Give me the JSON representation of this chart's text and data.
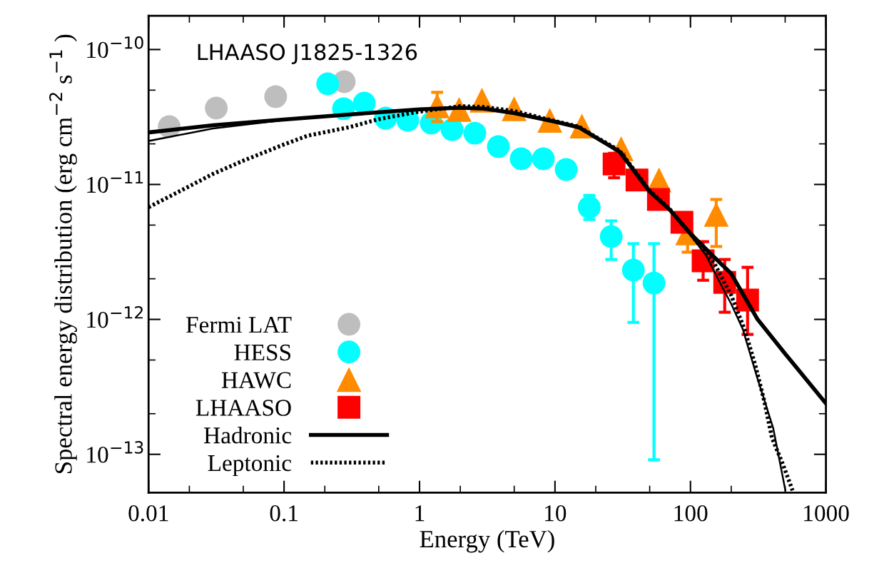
{
  "chart_data": {
    "type": "scatter",
    "title": "LHAASO J1825-1326",
    "xlabel": "Energy (TeV)",
    "ylabel": "Spectral energy distribution (erg cm$^{−2}$ s$^{−1}$ )",
    "log": "xy",
    "grid": false,
    "legend": "bottom left",
    "xlim": [
      0.01,
      1000
    ],
    "xticks": [
      0.01,
      0.1,
      1,
      10,
      100,
      1000
    ],
    "ylim": [
      5.2e-14,
      1.78e-10
    ],
    "yticks": [
      {
        "value": 1e-13,
        "label": "10$^{−13}$"
      },
      {
        "value": 1e-12,
        "label": "10$^{−12}$"
      },
      {
        "value": 1e-11,
        "label": "10$^{−11}$"
      },
      {
        "value": 1e-10,
        "label": "10$^{−10}$"
      }
    ],
    "series": [
      {
        "name": "Fermi LAT",
        "marker": "circle",
        "color": "#bebebe",
        "x": [
          0.0142,
          0.0316,
          0.0867,
          0.278
        ],
        "values": [
          2.68e-11,
          3.68e-11,
          4.48e-11,
          5.78e-11
        ]
      },
      {
        "name": "HESS",
        "marker": "circle",
        "color": "#00ffff",
        "x": [
          0.21,
          0.275,
          0.391,
          0.562,
          0.818,
          1.22,
          1.74,
          2.56,
          3.82,
          5.63,
          8.2,
          12.1,
          17.9,
          26.0,
          37.9,
          53.8
        ],
        "values": [
          5.57e-11,
          3.64e-11,
          4.01e-11,
          3.1e-11,
          2.99e-11,
          2.85e-11,
          2.55e-11,
          2.4e-11,
          1.91e-11,
          1.55e-11,
          1.55e-11,
          1.29e-11,
          6.77e-12,
          4.11e-12,
          2.32e-12,
          1.86e-12
        ],
        "errors": [
          null,
          null,
          null,
          null,
          null,
          null,
          null,
          null,
          null,
          null,
          null,
          null,
          [
            5.5e-12,
            8.3e-12
          ],
          [
            2.78e-12,
            5.37e-12
          ],
          [
            9.5e-13,
            3.64e-12
          ],
          [
            9.1e-14,
            3.64e-12
          ]
        ]
      },
      {
        "name": "HAWC",
        "marker": "triangle",
        "color": "#ff8c00",
        "x": [
          1.35,
          1.96,
          2.89,
          4.99,
          9.16,
          15.8,
          30.8,
          58.6,
          95.3,
          155
        ],
        "values": [
          3.82e-11,
          3.6e-11,
          4.21e-11,
          3.64e-11,
          2.99e-11,
          2.71e-11,
          1.84e-11,
          1.08e-11,
          4.37e-12,
          6e-12
        ],
        "errors": [
          [
            2.92e-11,
            4.82e-11
          ],
          null,
          null,
          null,
          null,
          null,
          null,
          null,
          [
            3.15e-12,
            4.37e-12
          ],
          [
            3.47e-12,
            7.74e-12
          ]
        ]
      },
      {
        "name": "LHAASO",
        "marker": "square",
        "color": "#ff0000",
        "x": [
          27.3,
          40.3,
          58.0,
          86.5,
          124,
          179,
          264
        ],
        "values": [
          1.42e-11,
          1.08e-11,
          7.75e-12,
          5.24e-12,
          2.72e-12,
          1.88e-12,
          1.39e-12
        ],
        "errors": [
          [
            1.12e-11,
            1.7e-11
          ],
          null,
          null,
          null,
          [
            1.95e-12,
            3.77e-12
          ],
          [
            1.13e-12,
            2.78e-12
          ],
          [
            7.74e-13,
            2.43e-12
          ]
        ]
      },
      {
        "name": "Hadronic",
        "type": "line",
        "line_style": "solid",
        "color": "#000000",
        "x": [
          0.01,
          0.03,
          0.1,
          0.3,
          1,
          2,
          3,
          5,
          10,
          15,
          20,
          30,
          50,
          70,
          100,
          150,
          200,
          313,
          500,
          1000
        ],
        "values": [
          2.43e-11,
          2.75e-11,
          3.03e-11,
          3.3e-11,
          3.6e-11,
          3.7e-11,
          3.65e-11,
          3.38e-11,
          2.92e-11,
          2.65e-11,
          2.23e-11,
          1.75e-11,
          8.85e-12,
          6.53e-12,
          4.32e-12,
          2.89e-12,
          2.18e-12,
          1e-12,
          5.57e-13,
          2.38e-13
        ]
      },
      {
        "type": "line",
        "line_style": "solid",
        "color": "#000000",
        "x": [
          0.01,
          0.03,
          0.1,
          1,
          2,
          3,
          5,
          10,
          15,
          20,
          30,
          50,
          70,
          100,
          130,
          170,
          200,
          243,
          309,
          409,
          502
        ],
        "values": [
          2.1e-11,
          2.6e-11,
          3e-11,
          3.6e-11,
          3.7e-11,
          3.65e-11,
          3.38e-11,
          2.92e-11,
          2.65e-11,
          2.23e-11,
          1.75e-11,
          8.85e-12,
          6.5e-12,
          4.2e-12,
          3e-12,
          1.77e-12,
          1.3e-12,
          8.5e-13,
          3.78e-13,
          1.55e-13,
          5.4e-14
        ]
      },
      {
        "name": "Leptonic",
        "type": "line",
        "line_style": "dotted",
        "color": "#000000",
        "x": [
          0.01,
          0.02,
          0.03,
          0.05,
          0.1,
          0.15,
          0.3,
          0.5,
          1,
          2,
          3,
          5,
          10,
          15,
          20,
          30,
          50,
          70,
          100,
          150,
          200,
          250,
          300,
          350,
          400,
          480,
          567
        ],
        "values": [
          6.78e-12,
          9.7e-12,
          1.2e-11,
          1.5e-11,
          1.98e-11,
          2.3e-11,
          2.65e-11,
          3.05e-11,
          3.47e-11,
          3.8e-11,
          3.75e-11,
          3.5e-11,
          2.95e-11,
          2.68e-11,
          2.25e-11,
          1.78e-11,
          9e-12,
          6.6e-12,
          4.3e-12,
          2.6e-12,
          1.51e-12,
          8.5e-13,
          4.64e-13,
          2.5e-13,
          1.32e-13,
          8.5e-14,
          5.4e-14
        ]
      }
    ]
  }
}
